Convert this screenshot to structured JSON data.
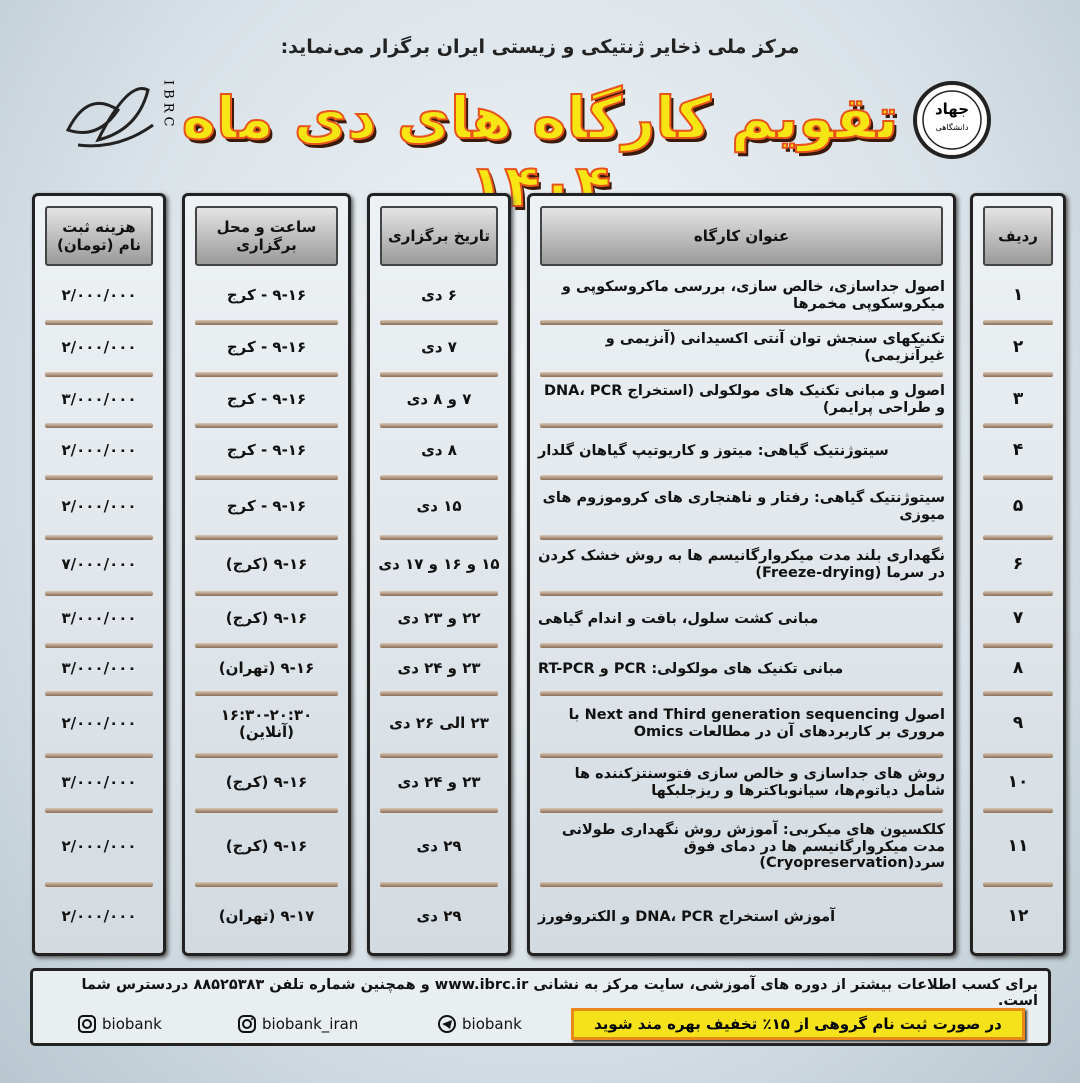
{
  "header": {
    "subtitle": "مرکز ملی ذخایر ژنتیکی و زیستی ایران برگزار می‌نماید:",
    "title": "تقویم کارگاه های دی ماه ۱۴۰۴",
    "logo_left": "IBRC",
    "logo_right_top": "جهاد",
    "logo_right_bottom": "دانشگاهی"
  },
  "table": {
    "columns": [
      "ردیف",
      "عنوان کارگاه",
      "تاریخ برگزاری",
      "ساعت و محل برگزاری",
      "هزینه ثبت نام (تومان)"
    ],
    "rows": [
      [
        "۱",
        "اصول جداسازی، خالص سازی، بررسی ماکروسکوپی و میکروسکوپی مخمرها",
        "۶ دی",
        "۹-۱۶ - کرج",
        "۲/۰۰۰/۰۰۰"
      ],
      [
        "۲",
        "تکنیکهای سنجش توان آنتی اکسیدانی (آنزیمی و غیرآنزیمی)",
        "۷ دی",
        "۹-۱۶ - کرج",
        "۲/۰۰۰/۰۰۰"
      ],
      [
        "۳",
        "اصول و مبانی تکنیک های مولکولی (استخراج DNA، PCR و طراحی پرایمر)",
        "۷ و ۸ دی",
        "۹-۱۶ - کرج",
        "۳/۰۰۰/۰۰۰"
      ],
      [
        "۴",
        "سیتوژنتیک گیاهی: میتوز و کاریوتیپ گیاهان گلدار",
        "۸ دی",
        "۹-۱۶ - کرج",
        "۲/۰۰۰/۰۰۰"
      ],
      [
        "۵",
        "سیتوژنتیک گیاهی: رفتار و ناهنجاری های کروموزوم های میوزی",
        "۱۵ دی",
        "۹-۱۶ - کرج",
        "۲/۰۰۰/۰۰۰"
      ],
      [
        "۶",
        "نگهداری بلند مدت میکروارگانیسم ها به روش خشک کردن در سرما (Freeze-drying)",
        "۱۵ و ۱۶ و ۱۷ دی",
        "۹-۱۶ (کرج)",
        "۷/۰۰۰/۰۰۰"
      ],
      [
        "۷",
        "مبانی کشت سلول، بافت و اندام گیاهی",
        "۲۲ و ۲۳ دی",
        "۹-۱۶ (کرج)",
        "۳/۰۰۰/۰۰۰"
      ],
      [
        "۸",
        "مبانی تکنیک های مولکولی: PCR و RT-PCR",
        "۲۳ و ۲۴ دی",
        "۹-۱۶ (تهران)",
        "۳/۰۰۰/۰۰۰"
      ],
      [
        "۹",
        "اصول Next and Third generation sequencing با مروری بر کاربردهای آن در مطالعات Omics",
        "۲۳ الی ۲۶ دی",
        "۱۶:۳۰-۲۰:۳۰ (آنلاین)",
        "۲/۰۰۰/۰۰۰"
      ],
      [
        "۱۰",
        "روش های جداسازی و خالص سازی فتوسنتزکننده ها شامل دیاتوم‌ها، سیانوباکترها و ریزجلبکها",
        "۲۳ و ۲۴ دی",
        "۹-۱۶ (کرج)",
        "۳/۰۰۰/۰۰۰"
      ],
      [
        "۱۱",
        "کلکسیون های میکربی: آموزش روش نگهداری طولانی مدت میکروارگانیسم ها در دمای فوق سرد(Cryopreservation)",
        "۲۹ دی",
        "۹-۱۶ (کرج)",
        "۲/۰۰۰/۰۰۰"
      ],
      [
        "۱۲",
        "آموزش استخراج DNA، PCR و الکتروفورز",
        "۲۹ دی",
        "۹-۱۷ (تهران)",
        "۲/۰۰۰/۰۰۰"
      ]
    ]
  },
  "footer": {
    "info": "برای کسب اطلاعات بیشتر از دوره های آموزشی، سایت مرکز به نشانی www.ibrc.ir و همچنین شماره تلفن ۸۸۵۲۵۳۸۳ دردسترس شما است.",
    "social": [
      "biobank",
      "biobank_iran",
      "biobank"
    ],
    "discount": "در صورت ثبت نام گروهی از ۱۵٪ تخفیف بهره مند شوید"
  }
}
